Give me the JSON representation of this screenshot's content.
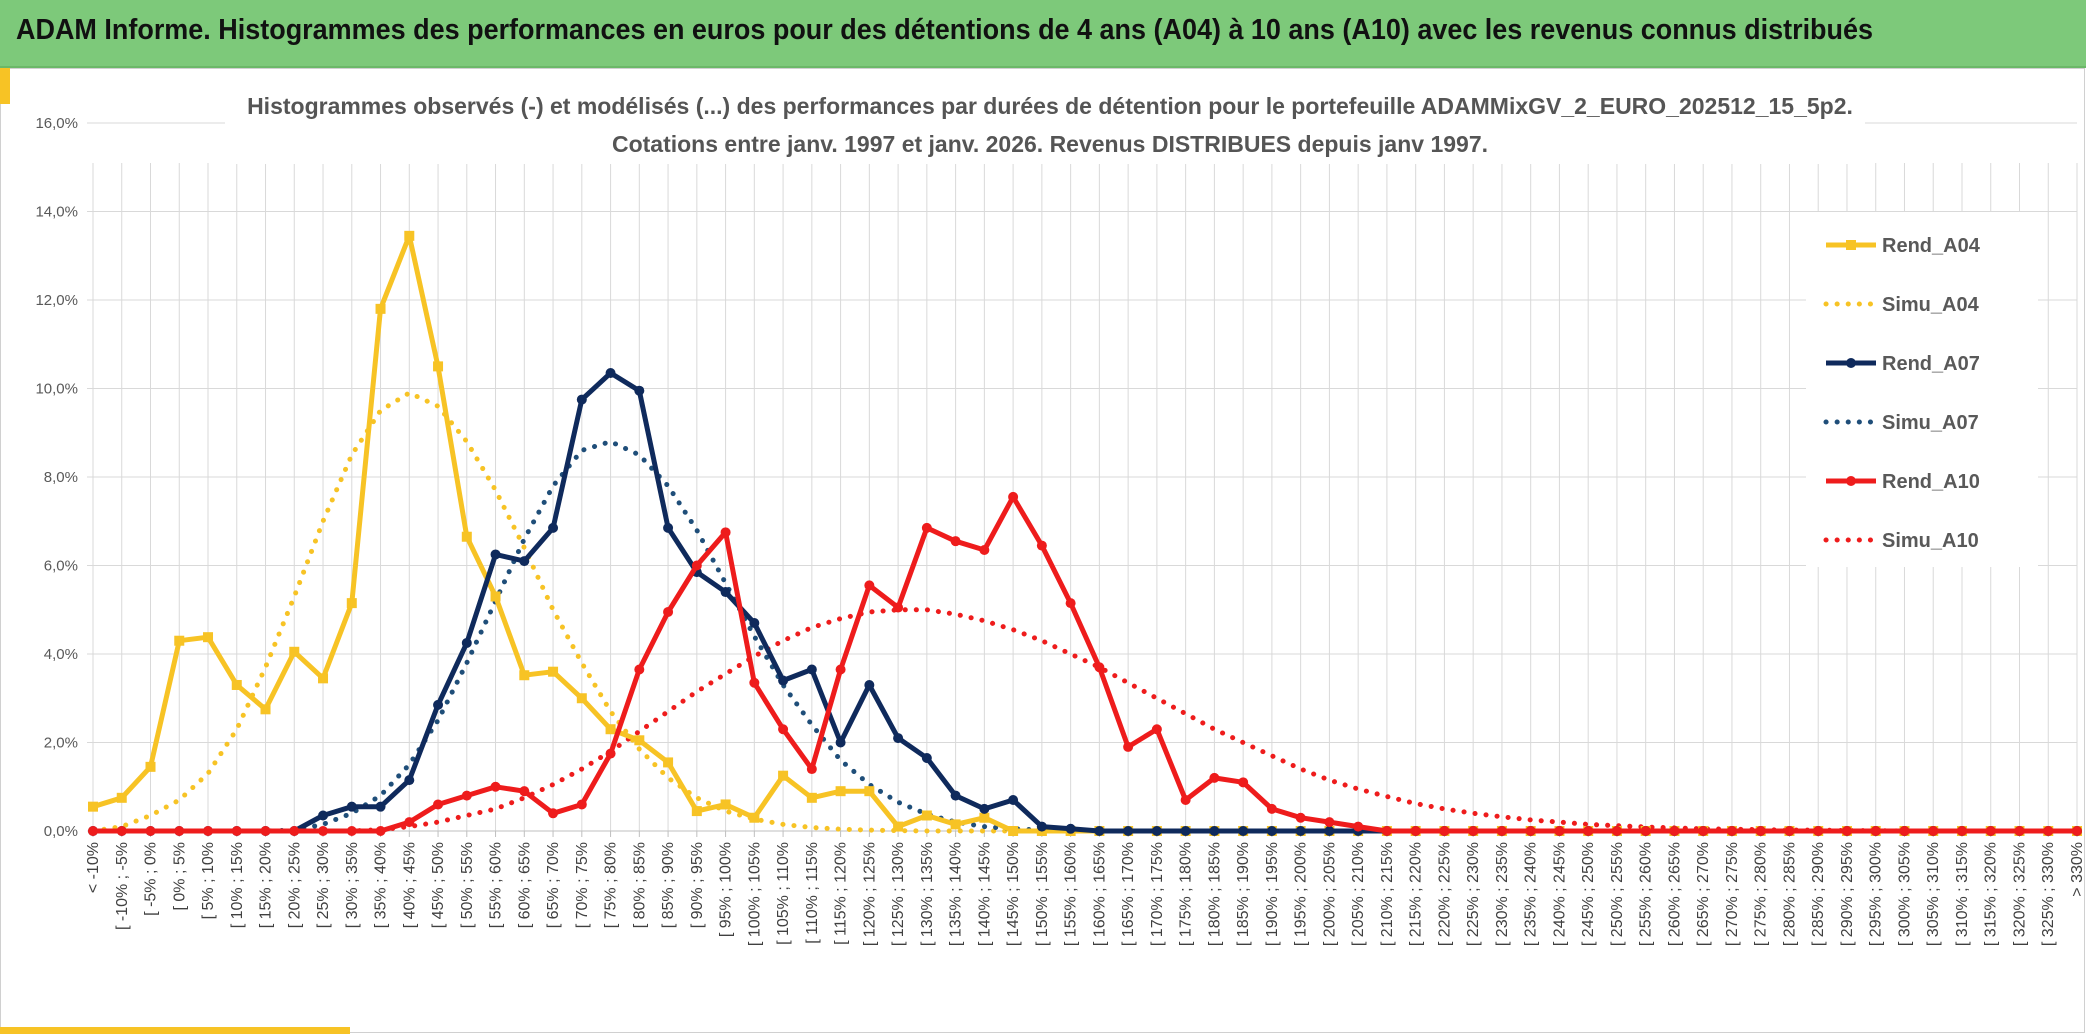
{
  "banner": {
    "title": "ADAM Informe. Histogrammes des performances en euros pour des détentions de 4 ans (A04) à 10 ans (A10) avec les revenus connus distribués"
  },
  "colors": {
    "banner_bg": "#7dc97a",
    "accent": "#f7c325",
    "A04": "#f7c325",
    "A07": "#0f2a5c",
    "A10": "#ee1c1c",
    "grid": "#d9d9d9"
  },
  "chart_data": {
    "type": "line",
    "title_line1": "Histogrammes observés (-) et modélisés (...) des performances par durées de détention pour le portefeuille ADAMMixGV_2_EURO_202512_15_5p2.",
    "title_line2": "Cotations entre janv. 1997 et janv. 2026. Revenus DISTRIBUES depuis janv 1997.",
    "ylim": [
      0,
      16
    ],
    "y_ticks": [
      "0,0%",
      "2,0%",
      "4,0%",
      "6,0%",
      "8,0%",
      "10,0%",
      "12,0%",
      "14,0%",
      "16,0%"
    ],
    "categories": [
      "< -10%",
      "[ -10% ; -5%",
      "[ -5% ; 0%",
      "[ 0% ; 5%",
      "[ 5% ; 10%",
      "[ 10% ; 15%",
      "[ 15% ; 20%",
      "[ 20% ; 25%",
      "[ 25% ; 30%",
      "[ 30% ; 35%",
      "[ 35% ; 40%",
      "[ 40% ; 45%",
      "[ 45% ; 50%",
      "[ 50% ; 55%",
      "[ 55% ; 60%",
      "[ 60% ; 65%",
      "[ 65% ; 70%",
      "[ 70% ; 75%",
      "[ 75% ; 80%",
      "[ 80% ; 85%",
      "[ 85% ; 90%",
      "[ 90% ; 95%",
      "[ 95% ; 100%",
      "[ 100% ; 105%",
      "[ 105% ; 110%",
      "[ 110% ; 115%",
      "[ 115% ; 120%",
      "[ 120% ; 125%",
      "[ 125% ; 130%",
      "[ 130% ; 135%",
      "[ 135% ; 140%",
      "[ 140% ; 145%",
      "[ 145% ; 150%",
      "[ 150% ; 155%",
      "[ 155% ; 160%",
      "[ 160% ; 165%",
      "[ 165% ; 170%",
      "[ 170% ; 175%",
      "[ 175% ; 180%",
      "[ 180% ; 185%",
      "[ 185% ; 190%",
      "[ 190% ; 195%",
      "[ 195% ; 200%",
      "[ 200% ; 205%",
      "[ 205% ; 210%",
      "[ 210% ; 215%",
      "[ 215% ; 220%",
      "[ 220% ; 225%",
      "[ 225% ; 230%",
      "[ 230% ; 235%",
      "[ 235% ; 240%",
      "[ 240% ; 245%",
      "[ 245% ; 250%",
      "[ 250% ; 255%",
      "[ 255% ; 260%",
      "[ 260% ; 265%",
      "[ 265% ; 270%",
      "[ 270% ; 275%",
      "[ 275% ; 280%",
      "[ 280% ; 285%",
      "[ 285% ; 290%",
      "[ 290% ; 295%",
      "[ 295% ; 300%",
      "[ 300% ; 305%",
      "[ 305% ; 310%",
      "[ 310% ; 315%",
      "[ 315% ; 320%",
      "[ 320% ; 325%",
      "[ 325% ; 330%",
      "> 330%"
    ],
    "series": [
      {
        "name": "Rend_A04",
        "style": "solid",
        "marker": "square",
        "color": "#f7c325",
        "values": [
          0.55,
          0.75,
          1.45,
          4.3,
          4.38,
          3.3,
          2.75,
          4.05,
          3.45,
          5.15,
          11.8,
          13.45,
          10.5,
          6.65,
          5.3,
          3.52,
          3.6,
          3.0,
          2.3,
          2.05,
          1.55,
          0.45,
          0.6,
          0.3,
          1.25,
          0.75,
          0.9,
          0.9,
          0.1,
          0.35,
          0.15,
          0.3,
          0.0,
          0.0,
          0.0,
          0.0,
          0.0,
          0.0,
          0.0,
          0.0,
          0.0,
          0.0,
          0.0,
          0.0,
          0.0,
          0.0,
          0.0,
          0.0,
          0.0,
          0.0,
          0.0,
          0.0,
          0.0,
          0.0,
          0.0,
          0.0,
          0.0,
          0.0,
          0.0,
          0.0,
          0.0,
          0.0,
          0.0,
          0.0,
          0.0,
          0.0,
          0.0,
          0.0,
          0.0,
          0.0
        ]
      },
      {
        "name": "Simu_A04",
        "style": "dotted",
        "marker": "none",
        "color": "#f7c325",
        "values": [
          0.0,
          0.1,
          0.35,
          0.7,
          1.3,
          2.3,
          3.7,
          5.3,
          7.0,
          8.5,
          9.5,
          9.9,
          9.6,
          8.8,
          7.7,
          6.4,
          5.0,
          3.8,
          2.7,
          1.85,
          1.2,
          0.75,
          0.45,
          0.27,
          0.15,
          0.08,
          0.04,
          0.02,
          0.01,
          0.0,
          0.0,
          0.0,
          0.0,
          0.0,
          0.0,
          0.0,
          0.0,
          0.0,
          0.0,
          0.0,
          0.0,
          0.0,
          0.0,
          0.0,
          0.0,
          0.0,
          0.0,
          0.0,
          0.0,
          0.0,
          0.0,
          0.0,
          0.0,
          0.0,
          0.0,
          0.0,
          0.0,
          0.0,
          0.0,
          0.0,
          0.0,
          0.0,
          0.0,
          0.0,
          0.0,
          0.0,
          0.0,
          0.0,
          0.0,
          0.0
        ]
      },
      {
        "name": "Rend_A07",
        "style": "solid",
        "marker": "circle",
        "color": "#0f2a5c",
        "values": [
          0.0,
          0.0,
          0.0,
          0.0,
          0.0,
          0.0,
          0.0,
          0.0,
          0.35,
          0.55,
          0.55,
          1.15,
          2.85,
          4.25,
          6.25,
          6.1,
          6.85,
          9.75,
          10.35,
          9.95,
          6.85,
          5.85,
          5.4,
          4.7,
          3.4,
          3.65,
          2.0,
          3.3,
          2.1,
          1.65,
          0.8,
          0.5,
          0.7,
          0.1,
          0.05,
          0.0,
          0.0,
          0.0,
          0.0,
          0.0,
          0.0,
          0.0,
          0.0,
          0.0,
          0.0,
          0.0,
          0.0,
          0.0,
          0.0,
          0.0,
          0.0,
          0.0,
          0.0,
          0.0,
          0.0,
          0.0,
          0.0,
          0.0,
          0.0,
          0.0,
          0.0,
          0.0,
          0.0,
          0.0,
          0.0,
          0.0,
          0.0,
          0.0,
          0.0,
          0.0
        ]
      },
      {
        "name": "Simu_A07",
        "style": "dotted",
        "marker": "none",
        "color": "#1f4e79",
        "values": [
          0.0,
          0.0,
          0.0,
          0.0,
          0.0,
          0.0,
          0.0,
          0.02,
          0.15,
          0.4,
          0.8,
          1.5,
          2.5,
          3.8,
          5.2,
          6.6,
          7.8,
          8.6,
          8.8,
          8.5,
          7.8,
          6.8,
          5.6,
          4.4,
          3.3,
          2.4,
          1.6,
          1.05,
          0.65,
          0.38,
          0.2,
          0.1,
          0.05,
          0.02,
          0.0,
          0.0,
          0.0,
          0.0,
          0.0,
          0.0,
          0.0,
          0.0,
          0.0,
          0.0,
          0.0,
          0.0,
          0.0,
          0.0,
          0.0,
          0.0,
          0.0,
          0.0,
          0.0,
          0.0,
          0.0,
          0.0,
          0.0,
          0.0,
          0.0,
          0.0,
          0.0,
          0.0,
          0.0,
          0.0,
          0.0,
          0.0,
          0.0,
          0.0,
          0.0,
          0.0
        ]
      },
      {
        "name": "Rend_A10",
        "style": "solid",
        "marker": "circle",
        "color": "#ee1c1c",
        "values": [
          0.0,
          0.0,
          0.0,
          0.0,
          0.0,
          0.0,
          0.0,
          0.0,
          0.0,
          0.0,
          0.0,
          0.2,
          0.6,
          0.8,
          1.0,
          0.9,
          0.4,
          0.6,
          1.75,
          3.65,
          4.95,
          6.0,
          6.75,
          3.35,
          2.3,
          1.4,
          3.65,
          5.55,
          5.05,
          6.85,
          6.55,
          6.35,
          7.55,
          6.45,
          5.15,
          3.7,
          1.9,
          2.3,
          0.7,
          1.2,
          1.1,
          0.5,
          0.3,
          0.2,
          0.1,
          0.0,
          0.0,
          0.0,
          0.0,
          0.0,
          0.0,
          0.0,
          0.0,
          0.0,
          0.0,
          0.0,
          0.0,
          0.0,
          0.0,
          0.0,
          0.0,
          0.0,
          0.0,
          0.0,
          0.0,
          0.0,
          0.0,
          0.0,
          0.0,
          0.0
        ]
      },
      {
        "name": "Simu_A10",
        "style": "dotted",
        "marker": "none",
        "color": "#ee1c1c",
        "values": [
          0.0,
          0.0,
          0.0,
          0.0,
          0.0,
          0.0,
          0.0,
          0.0,
          0.0,
          0.0,
          0.03,
          0.1,
          0.2,
          0.35,
          0.5,
          0.75,
          1.05,
          1.4,
          1.8,
          2.25,
          2.7,
          3.15,
          3.55,
          3.95,
          4.3,
          4.6,
          4.8,
          4.95,
          5.0,
          5.0,
          4.9,
          4.75,
          4.55,
          4.3,
          4.0,
          3.7,
          3.35,
          3.0,
          2.65,
          2.3,
          2.0,
          1.7,
          1.4,
          1.15,
          0.95,
          0.78,
          0.62,
          0.5,
          0.4,
          0.32,
          0.25,
          0.2,
          0.15,
          0.12,
          0.09,
          0.07,
          0.05,
          0.04,
          0.03,
          0.02,
          0.02,
          0.01,
          0.01,
          0.0,
          0.0,
          0.0,
          0.0,
          0.0,
          0.0,
          0.0
        ]
      }
    ],
    "legend_position": "right"
  }
}
